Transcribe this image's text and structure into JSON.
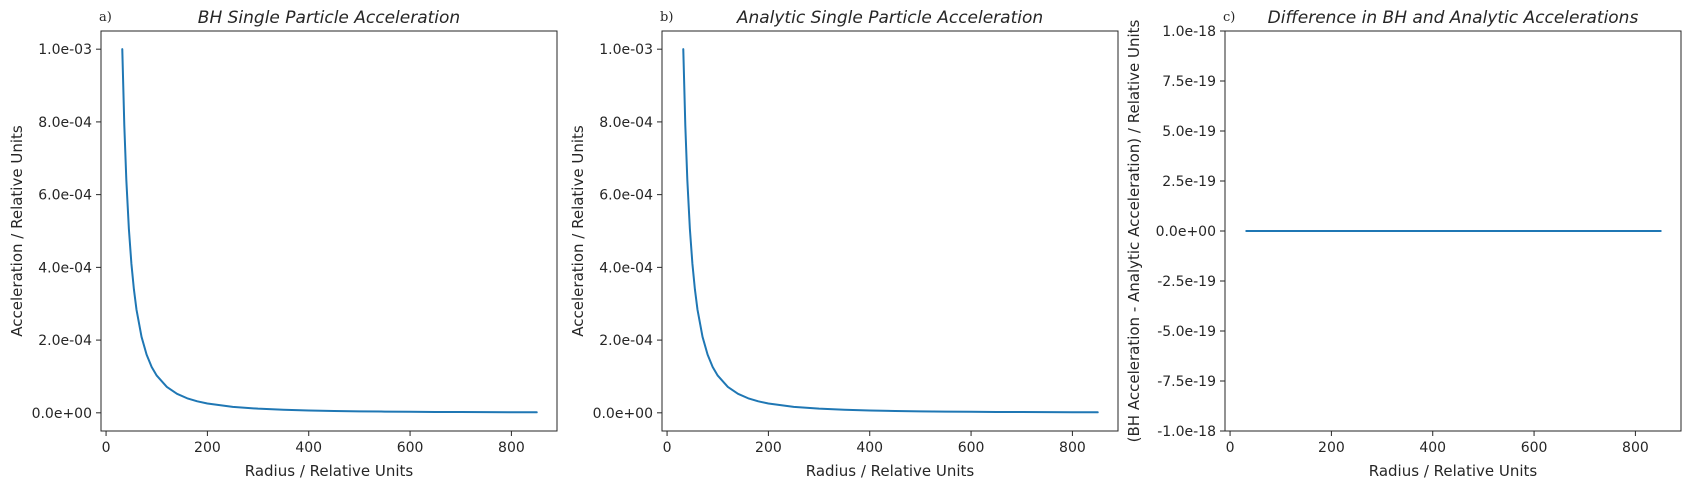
{
  "colors": {
    "series": "#1f77b4"
  },
  "chart_data": [
    {
      "type": "line",
      "panel_label": "a)",
      "title": "BH Single Particle Acceleration",
      "xlabel": "Radius / Relative Units",
      "ylabel": "Acceleration /  Relative Units",
      "xlim": [
        -10,
        890
      ],
      "ylim": [
        -5e-05,
        0.00105
      ],
      "xticks": [
        0,
        200,
        400,
        600,
        800
      ],
      "xtick_labels": [
        "0",
        "200",
        "400",
        "600",
        "800"
      ],
      "yticks": [
        0,
        0.0002,
        0.0004,
        0.0006,
        0.0008,
        0.001
      ],
      "ytick_labels": [
        "0.0e+00",
        "2.0e-04",
        "4.0e-04",
        "6.0e-04",
        "8.0e-04",
        "1.0e-03"
      ],
      "series": [
        {
          "x": [
            32,
            36,
            40,
            45,
            50,
            55,
            60,
            70,
            80,
            90,
            100,
            120,
            140,
            160,
            180,
            200,
            250,
            300,
            350,
            400,
            450,
            500,
            550,
            600,
            650,
            700,
            750,
            800,
            850
          ],
          "y": [
            0.001,
            0.00079,
            0.00064,
            0.000506,
            0.00041,
            0.000339,
            0.000284,
            0.000209,
            0.00016,
            0.000126,
            0.0001024,
            7.11e-05,
            5.22e-05,
            4e-05,
            3.16e-05,
            2.56e-05,
            1.64e-05,
            1.14e-05,
            8.4e-06,
            6.4e-06,
            5.1e-06,
            4.1e-06,
            3.4e-06,
            2.8e-06,
            2.4e-06,
            2.1e-06,
            1.8e-06,
            1.6e-06,
            1.4e-06
          ]
        }
      ]
    },
    {
      "type": "line",
      "panel_label": "b)",
      "title": "Analytic Single Particle Acceleration",
      "xlabel": "Radius / Relative Units",
      "ylabel": "Acceleration / Relative Units",
      "xlim": [
        -10,
        890
      ],
      "ylim": [
        -5e-05,
        0.00105
      ],
      "xticks": [
        0,
        200,
        400,
        600,
        800
      ],
      "xtick_labels": [
        "0",
        "200",
        "400",
        "600",
        "800"
      ],
      "yticks": [
        0,
        0.0002,
        0.0004,
        0.0006,
        0.0008,
        0.001
      ],
      "ytick_labels": [
        "0.0e+00",
        "2.0e-04",
        "4.0e-04",
        "6.0e-04",
        "8.0e-04",
        "1.0e-03"
      ],
      "series": [
        {
          "x": [
            32,
            36,
            40,
            45,
            50,
            55,
            60,
            70,
            80,
            90,
            100,
            120,
            140,
            160,
            180,
            200,
            250,
            300,
            350,
            400,
            450,
            500,
            550,
            600,
            650,
            700,
            750,
            800,
            850
          ],
          "y": [
            0.001,
            0.00079,
            0.00064,
            0.000506,
            0.00041,
            0.000339,
            0.000284,
            0.000209,
            0.00016,
            0.000126,
            0.0001024,
            7.11e-05,
            5.22e-05,
            4e-05,
            3.16e-05,
            2.56e-05,
            1.64e-05,
            1.14e-05,
            8.4e-06,
            6.4e-06,
            5.1e-06,
            4.1e-06,
            3.4e-06,
            2.8e-06,
            2.4e-06,
            2.1e-06,
            1.8e-06,
            1.6e-06,
            1.4e-06
          ]
        }
      ]
    },
    {
      "type": "line",
      "panel_label": "c)",
      "title": "Difference in BH and Analytic Accelerations",
      "xlabel": "Radius / Relative Units",
      "ylabel": "(BH Acceleration - Analytic Acceleration) / Relative Units",
      "xlim": [
        -10,
        890
      ],
      "ylim": [
        -1e-18,
        1e-18
      ],
      "xticks": [
        0,
        200,
        400,
        600,
        800
      ],
      "xtick_labels": [
        "0",
        "200",
        "400",
        "600",
        "800"
      ],
      "yticks": [
        -1e-18,
        -7.5e-19,
        -5e-19,
        -2.5e-19,
        0,
        2.5e-19,
        5e-19,
        7.5e-19,
        1e-18
      ],
      "ytick_labels": [
        "-1.0e-18",
        "-7.5e-19",
        "-5.0e-19",
        "-2.5e-19",
        "0.0e+00",
        "2.5e-19",
        "5.0e-19",
        "7.5e-19",
        "1.0e-18"
      ],
      "series": [
        {
          "x": [
            32,
            850
          ],
          "y": [
            0,
            0
          ]
        }
      ]
    }
  ]
}
